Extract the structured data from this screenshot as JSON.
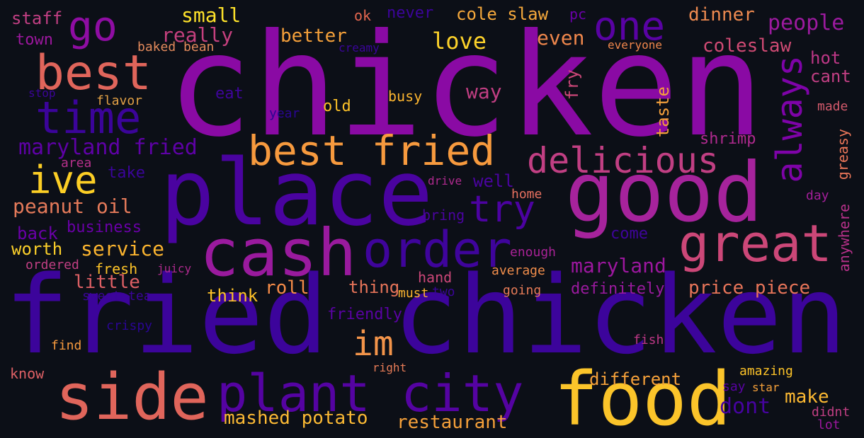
{
  "words": [
    {
      "id": "chicken-large",
      "text": "chicken",
      "color": "#8a0aa4"
    },
    {
      "id": "fried-chicken",
      "text": "fried chicken",
      "color": "#3c049b"
    },
    {
      "id": "place",
      "text": "place",
      "color": "#4a03a0"
    },
    {
      "id": "good",
      "text": "good",
      "color": "#a6239c"
    },
    {
      "id": "food",
      "text": "food",
      "color": "#fbc42a"
    },
    {
      "id": "side",
      "text": "side",
      "color": "#e0655b"
    },
    {
      "id": "plant-city",
      "text": "plant city",
      "color": "#5503a2"
    },
    {
      "id": "cash",
      "text": "cash",
      "color": "#9a1a9e"
    },
    {
      "id": "order",
      "text": "order",
      "color": "#3f049c"
    },
    {
      "id": "great",
      "text": "great",
      "color": "#cc4778"
    },
    {
      "id": "best",
      "text": "best",
      "color": "#e0655b"
    },
    {
      "id": "go",
      "text": "go",
      "color": "#8f0da3"
    },
    {
      "id": "time",
      "text": "time",
      "color": "#3b049a"
    },
    {
      "id": "one",
      "text": "one",
      "color": "#5902a3"
    },
    {
      "id": "best-fried",
      "text": "best fried",
      "color": "#f79a3e"
    },
    {
      "id": "delicious",
      "text": "delicious",
      "color": "#c13f83"
    },
    {
      "id": "always",
      "text": "always",
      "color": "#7e03a8"
    },
    {
      "id": "ive",
      "text": "ive",
      "color": "#fcce25"
    },
    {
      "id": "try",
      "text": "try",
      "color": "#4c02a1"
    },
    {
      "id": "im",
      "text": "im",
      "color": "#f3944a"
    },
    {
      "id": "maryland-fried",
      "text": "maryland fried",
      "color": "#5e01a6"
    },
    {
      "id": "peanut-oil",
      "text": "peanut oil",
      "color": "#e57a5a"
    },
    {
      "id": "dont",
      "text": "dont",
      "color": "#4603a0"
    },
    {
      "id": "maryland",
      "text": "maryland",
      "color": "#9c179e"
    },
    {
      "id": "service",
      "text": "service",
      "color": "#fbb42f"
    },
    {
      "id": "worth",
      "text": "worth",
      "color": "#fbcf2a"
    },
    {
      "id": "business",
      "text": "business",
      "color": "#6a00a8"
    },
    {
      "id": "back",
      "text": "back",
      "color": "#6a00a8"
    },
    {
      "id": "price-piece",
      "text": "price piece",
      "color": "#e77459"
    },
    {
      "id": "roll",
      "text": "roll",
      "color": "#f58b48"
    },
    {
      "id": "thing",
      "text": "thing",
      "color": "#e77459"
    },
    {
      "id": "little",
      "text": "little",
      "color": "#de6065"
    },
    {
      "id": "think",
      "text": "think",
      "color": "#fcc128"
    },
    {
      "id": "mashed-potato",
      "text": "mashed potato",
      "color": "#fbb934"
    },
    {
      "id": "restaurant",
      "text": "restaurant",
      "color": "#f5a03a"
    },
    {
      "id": "make",
      "text": "make",
      "color": "#fbb832"
    },
    {
      "id": "different",
      "text": "different",
      "color": "#f5a03a"
    },
    {
      "id": "love",
      "text": "love",
      "color": "#fcd12a"
    },
    {
      "id": "better",
      "text": "better",
      "color": "#f5a03a"
    },
    {
      "id": "really",
      "text": "really",
      "color": "#c5407e"
    },
    {
      "id": "small",
      "text": "small",
      "color": "#fde12a"
    },
    {
      "id": "cole-slaw",
      "text": "cole slaw",
      "color": "#f6a93c"
    },
    {
      "id": "coleslaw",
      "text": "coleslaw",
      "color": "#cf4a73"
    },
    {
      "id": "people",
      "text": "people",
      "color": "#9c1a9f"
    },
    {
      "id": "dinner",
      "text": "dinner",
      "color": "#ee8a50"
    },
    {
      "id": "even",
      "text": "even",
      "color": "#f0874c"
    },
    {
      "id": "way",
      "text": "way",
      "color": "#c03e82"
    },
    {
      "id": "hot",
      "text": "hot",
      "color": "#bd3786"
    },
    {
      "id": "cant",
      "text": "cant",
      "color": "#c13f83"
    },
    {
      "id": "made",
      "text": "made",
      "color": "#d45a6c"
    },
    {
      "id": "staff",
      "text": "staff",
      "color": "#c13f83"
    },
    {
      "id": "town",
      "text": "town",
      "color": "#9c179e"
    },
    {
      "id": "baked-bean",
      "text": "baked bean",
      "color": "#e38a5c"
    },
    {
      "id": "creamy",
      "text": "creamy",
      "color": "#3a049a"
    },
    {
      "id": "ok",
      "text": "ok",
      "color": "#e4664f"
    },
    {
      "id": "never",
      "text": "never",
      "color": "#3c049b"
    },
    {
      "id": "pc",
      "text": "pc",
      "color": "#6a00a8"
    },
    {
      "id": "everyone",
      "text": "everyone",
      "color": "#f0874c"
    },
    {
      "id": "stop",
      "text": "stop",
      "color": "#3b049a"
    },
    {
      "id": "flavor",
      "text": "flavor",
      "color": "#e2a146"
    },
    {
      "id": "eat",
      "text": "eat",
      "color": "#3f049c"
    },
    {
      "id": "year",
      "text": "year",
      "color": "#2a0593"
    },
    {
      "id": "old",
      "text": "old",
      "color": "#fcc128"
    },
    {
      "id": "busy",
      "text": "busy",
      "color": "#fbb42f"
    },
    {
      "id": "fry",
      "text": "fry",
      "color": "#cc4778"
    },
    {
      "id": "taste",
      "text": "taste",
      "color": "#f4a03c"
    },
    {
      "id": "shrimp",
      "text": "shrimp",
      "color": "#b02a8f"
    },
    {
      "id": "area",
      "text": "area",
      "color": "#b6308b"
    },
    {
      "id": "take",
      "text": "take",
      "color": "#3a049a"
    },
    {
      "id": "drive",
      "text": "drive",
      "color": "#b02a8f"
    },
    {
      "id": "well",
      "text": "well",
      "color": "#4a03a0"
    },
    {
      "id": "home",
      "text": "home",
      "color": "#e6705f"
    },
    {
      "id": "greasy",
      "text": "greasy",
      "color": "#ea7659"
    },
    {
      "id": "day",
      "text": "day",
      "color": "#a41f9a"
    },
    {
      "id": "anywhere",
      "text": "anywhere",
      "color": "#b7318a"
    },
    {
      "id": "bring",
      "text": "bring",
      "color": "#4a03a0"
    },
    {
      "id": "come",
      "text": "come",
      "color": "#3f049c"
    },
    {
      "id": "enough",
      "text": "enough",
      "color": "#a82296"
    },
    {
      "id": "average",
      "text": "average",
      "color": "#f08d4b"
    },
    {
      "id": "hand",
      "text": "hand",
      "color": "#cc4778"
    },
    {
      "id": "must",
      "text": "must",
      "color": "#fbb42f"
    },
    {
      "id": "two",
      "text": "two",
      "color": "#3b049a"
    },
    {
      "id": "going",
      "text": "going",
      "color": "#e67b57"
    },
    {
      "id": "definitely",
      "text": "definitely",
      "color": "#9a1a9e"
    },
    {
      "id": "friendly",
      "text": "friendly",
      "color": "#5a02a4"
    },
    {
      "id": "fish",
      "text": "fish",
      "color": "#bd3786"
    },
    {
      "id": "amazing",
      "text": "amazing",
      "color": "#fdc328"
    },
    {
      "id": "say",
      "text": "say",
      "color": "#5a02a4"
    },
    {
      "id": "star",
      "text": "star",
      "color": "#f5a03a"
    },
    {
      "id": "didnt",
      "text": "didnt",
      "color": "#c13f83"
    },
    {
      "id": "lot",
      "text": "lot",
      "color": "#9c179e"
    },
    {
      "id": "right",
      "text": "right",
      "color": "#e67b57"
    },
    {
      "id": "ordered",
      "text": "ordered",
      "color": "#c13f83"
    },
    {
      "id": "fresh",
      "text": "fresh",
      "color": "#fdc328"
    },
    {
      "id": "juicy",
      "text": "juicy",
      "color": "#b02a8f"
    },
    {
      "id": "sweet-tea",
      "text": "sweet tea",
      "color": "#3b049a"
    },
    {
      "id": "crispy",
      "text": "crispy",
      "color": "#2a0593"
    },
    {
      "id": "find",
      "text": "find",
      "color": "#f79a3e"
    },
    {
      "id": "know",
      "text": "know",
      "color": "#de6065"
    }
  ]
}
